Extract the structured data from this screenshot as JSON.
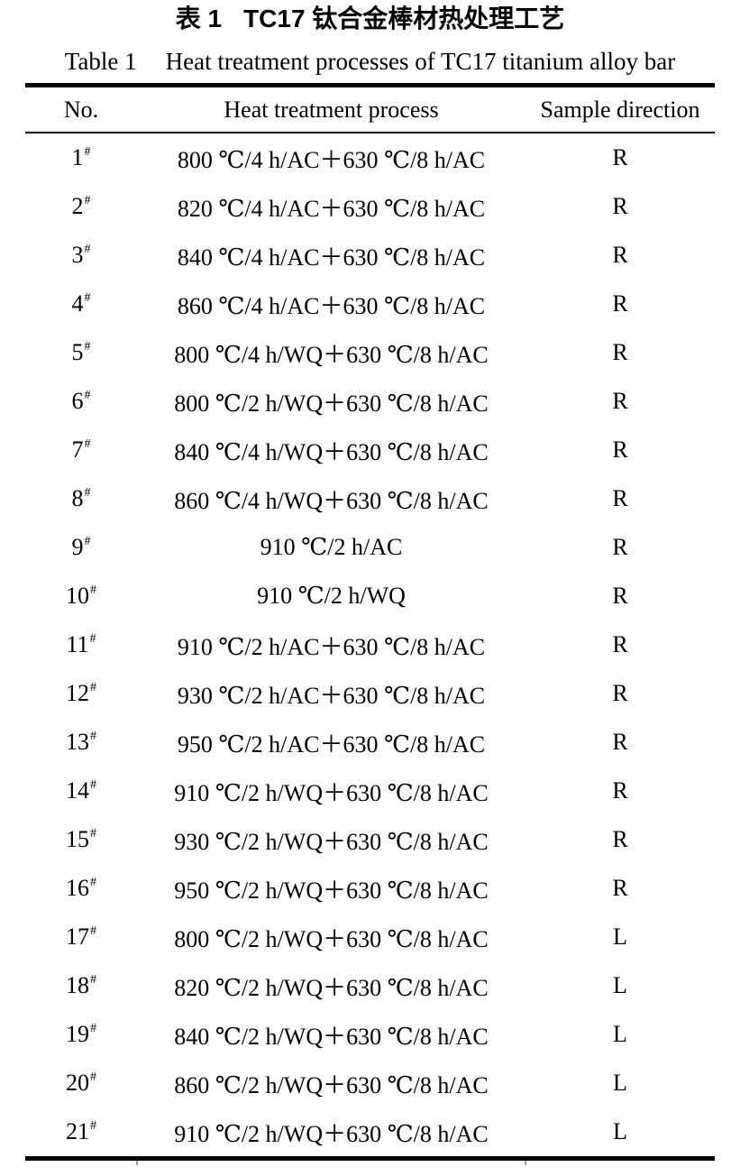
{
  "page": {
    "background": "#ffffff",
    "text_color": "#000000",
    "rule_color": "#000000"
  },
  "captions": {
    "zh_label": "表 1",
    "zh_text": "TC17 钛合金棒材热处理工艺",
    "en_label": "Table 1",
    "en_text": "Heat treatment processes of TC17 titanium alloy bar"
  },
  "table": {
    "columns": [
      "No.",
      "Heat treatment process",
      "Sample direction"
    ],
    "rows": [
      {
        "no": "1",
        "mark": "#",
        "process": "800 ℃/4 h/AC＋630 ℃/8 h/AC",
        "direction": "R"
      },
      {
        "no": "2",
        "mark": "#",
        "process": "820 ℃/4 h/AC＋630 ℃/8 h/AC",
        "direction": "R"
      },
      {
        "no": "3",
        "mark": "#",
        "process": "840 ℃/4 h/AC＋630 ℃/8 h/AC",
        "direction": "R"
      },
      {
        "no": "4",
        "mark": "#",
        "process": "860 ℃/4 h/AC＋630 ℃/8 h/AC",
        "direction": "R"
      },
      {
        "no": "5",
        "mark": "#",
        "process": "800 ℃/4 h/WQ＋630 ℃/8 h/AC",
        "direction": "R"
      },
      {
        "no": "6",
        "mark": "#",
        "process": "800 ℃/2 h/WQ＋630 ℃/8 h/AC",
        "direction": "R"
      },
      {
        "no": "7",
        "mark": "#",
        "process": "840 ℃/4 h/WQ＋630 ℃/8 h/AC",
        "direction": "R"
      },
      {
        "no": "8",
        "mark": "#",
        "process": "860 ℃/4 h/WQ＋630 ℃/8 h/AC",
        "direction": "R"
      },
      {
        "no": "9",
        "mark": "#",
        "process": "910 ℃/2 h/AC",
        "direction": "R"
      },
      {
        "no": "10",
        "mark": "#",
        "process": "910 ℃/2 h/WQ",
        "direction": "R"
      },
      {
        "no": "11",
        "mark": "#",
        "process": "910 ℃/2 h/AC＋630 ℃/8 h/AC",
        "direction": "R"
      },
      {
        "no": "12",
        "mark": "#",
        "process": "930 ℃/2 h/AC＋630 ℃/8 h/AC",
        "direction": "R"
      },
      {
        "no": "13",
        "mark": "#",
        "process": "950 ℃/2 h/AC＋630 ℃/8 h/AC",
        "direction": "R"
      },
      {
        "no": "14",
        "mark": "#",
        "process": "910 ℃/2 h/WQ＋630 ℃/8 h/AC",
        "direction": "R"
      },
      {
        "no": "15",
        "mark": "#",
        "process": "930 ℃/2 h/WQ＋630 ℃/8 h/AC",
        "direction": "R"
      },
      {
        "no": "16",
        "mark": "#",
        "process": "950 ℃/2 h/WQ＋630 ℃/8 h/AC",
        "direction": "R"
      },
      {
        "no": "17",
        "mark": "#",
        "process": "800 ℃/2 h/WQ＋630 ℃/8 h/AC",
        "direction": "L"
      },
      {
        "no": "18",
        "mark": "#",
        "process": "820 ℃/2 h/WQ＋630 ℃/8 h/AC",
        "direction": "L"
      },
      {
        "no": "19",
        "mark": "#",
        "process": "840 ℃/2 h/WQ＋630 ℃/8 h/AC",
        "direction": "L"
      },
      {
        "no": "20",
        "mark": "#",
        "process": "860 ℃/2 h/WQ＋630 ℃/8 h/AC",
        "direction": "L"
      },
      {
        "no": "21",
        "mark": "#",
        "process": "910 ℃/2 h/WQ＋630 ℃/8 h/AC",
        "direction": "L"
      }
    ]
  }
}
